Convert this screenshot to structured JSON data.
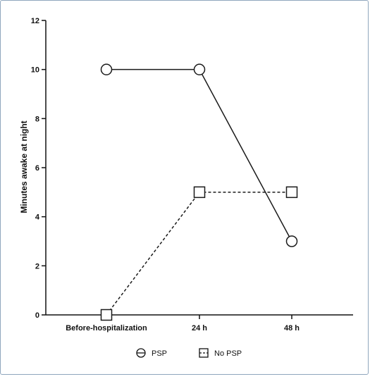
{
  "chart_data": {
    "type": "line",
    "title": "",
    "xlabel": "",
    "ylabel": "Minutes awake at night",
    "categories": [
      "Before-hospitalization",
      "24 h",
      "48 h"
    ],
    "ylim": [
      0,
      12
    ],
    "yticks": [
      0,
      2,
      4,
      6,
      8,
      10,
      12
    ],
    "grid": false,
    "legend_position": "bottom",
    "series": [
      {
        "name": "PSP",
        "values": [
          10,
          10,
          3
        ],
        "marker": "circle",
        "line": "solid",
        "color": "#1a1a1a"
      },
      {
        "name": "No PSP",
        "values": [
          0,
          5,
          5
        ],
        "marker": "square",
        "line": "dashed",
        "color": "#1a1a1a"
      }
    ]
  }
}
